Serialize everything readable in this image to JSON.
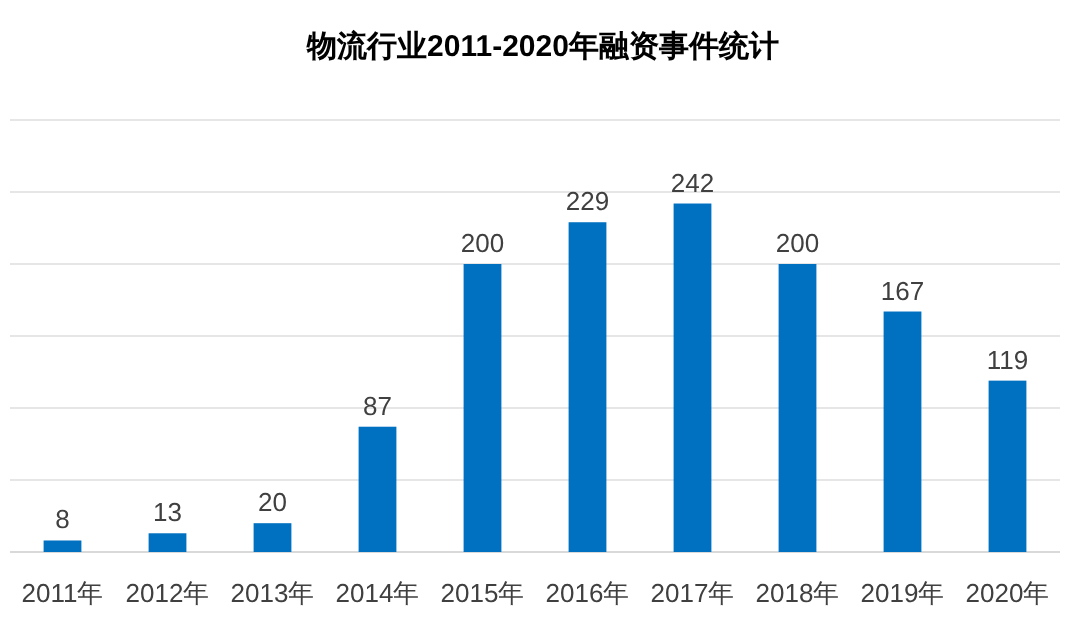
{
  "chart_data": {
    "type": "bar",
    "title": "物流行业2011-2020年融资事件统计",
    "categories": [
      "2011年",
      "2012年",
      "2013年",
      "2014年",
      "2015年",
      "2016年",
      "2017年",
      "2018年",
      "2019年",
      "2020年"
    ],
    "values": [
      8,
      13,
      20,
      87,
      200,
      229,
      242,
      200,
      167,
      119
    ],
    "color": "#0070c0",
    "data_labels": true,
    "ylim": [
      0,
      300
    ],
    "yticks": [
      {
        "value": 0,
        "label": null
      },
      {
        "value": 50,
        "label": null
      },
      {
        "value": 100,
        "label": null
      },
      {
        "value": 150,
        "label": null
      },
      {
        "value": 200,
        "label": null
      },
      {
        "value": 250,
        "label": null
      },
      {
        "value": 300,
        "label": null
      }
    ],
    "grid": "y",
    "tick_labels": "x"
  }
}
